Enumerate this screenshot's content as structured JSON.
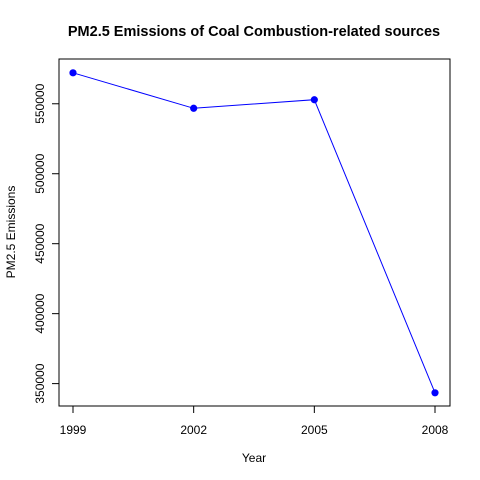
{
  "chart_data": {
    "type": "line",
    "title": "PM2.5 Emissions of Coal Combustion-related sources",
    "xlabel": "Year",
    "ylabel": "PM2.5 Emissions",
    "x": [
      "1999",
      "2002",
      "2005",
      "2008"
    ],
    "y": [
      572126,
      546789,
      552881,
      343432
    ],
    "x_ticks": [
      "1999",
      "2002",
      "2005",
      "2008"
    ],
    "y_ticks": [
      "350000",
      "400000",
      "450000",
      "500000",
      "550000"
    ],
    "y_tick_values": [
      350000,
      400000,
      450000,
      500000,
      550000
    ],
    "ylim": [
      334000,
      582000
    ],
    "grid": false,
    "line_color": "#0000ff",
    "marker_color": "#0000ff",
    "marker": "filled-circle"
  }
}
